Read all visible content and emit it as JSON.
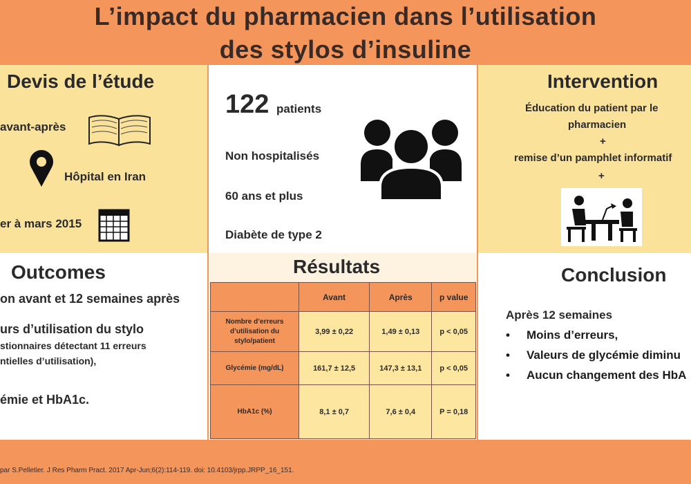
{
  "title": {
    "line1": "L’impact du pharmacien dans l’utilisation",
    "line2": "des stylos d’insuline"
  },
  "devis": {
    "heading": "Devis de l’étude",
    "design": "avant-après",
    "location": "Hôpital en Iran",
    "period": "er à mars 2015",
    "icons": [
      "book-icon",
      "map-pin-icon",
      "calendar-icon"
    ]
  },
  "patients": {
    "count": "122",
    "count_label": "patients",
    "line1": "Non hospitalisés",
    "line2": "60 ans et plus",
    "line3": "Diabète de type 2",
    "icon": "people-group-icon"
  },
  "intervention": {
    "heading": "Intervention",
    "line1": "Éducation du patient par le",
    "line2": "pharmacien",
    "plus1": "+",
    "line3": "remise d’un pamphlet informatif",
    "plus2": "+",
    "icon": "consultation-desk-icon"
  },
  "outcomes": {
    "heading": "Outcomes",
    "timing": "on avant et  12 semaines après",
    "line1": "urs d’utilisation du stylo",
    "line2": "stionnaires détectant 11 erreurs",
    "line3": "ntielles d’utilisation),",
    "line4": "émie et HbA1c."
  },
  "results": {
    "heading": "Résultats",
    "columns": [
      "",
      "Avant",
      "Après",
      "p value"
    ],
    "rows": [
      {
        "label": "Nombre d’erreurs d’utilisation du stylo/patient",
        "avant": "3,99 ± 0,22",
        "apres": "1,49 ± 0,13",
        "p": "p < 0,05"
      },
      {
        "label": "Glycémie  (mg/dL)",
        "avant": "161,7 ± 12,5",
        "apres": "147,3 ± 13,1",
        "p": "p < 0,05"
      },
      {
        "label": "HbA1c (%)",
        "avant": "8,1 ± 0,7",
        "apres": "7,6 ± 0,4",
        "p": "P = 0,18"
      }
    ]
  },
  "conclusion": {
    "heading": "Conclusion",
    "intro": "Après 12 semaines",
    "bullet": "•",
    "items": [
      "Moins d’erreurs,",
      "Valeurs de glycémie diminu",
      "Aucun changement des HbA"
    ]
  },
  "footer": {
    "text": "par S.Pelletier. J Res Pharm Pract. 2017 Apr-Jun;6(2):114-119. doi: 10.4103/jrpp.JRPP_16_151."
  }
}
